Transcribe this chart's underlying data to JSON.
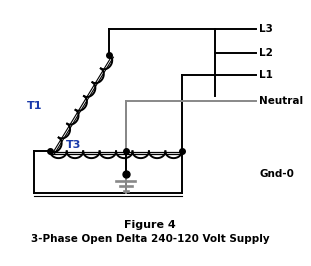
{
  "title_line1": "Figure 4",
  "title_line2": "3-Phase Open Delta 240-120 Volt Supply",
  "label_T1": "T1",
  "label_T3": "T3",
  "label_L3": "L3",
  "label_L2": "L2",
  "label_L1": "L1",
  "label_Neutral": "Neutral",
  "label_Gnd": "Gnd-0",
  "line_color": "#000000",
  "gray_color": "#888888",
  "dot_color": "#000000",
  "label_color_T": "#1a3aaa",
  "bg_color": "#ffffff",
  "figsize": [
    3.11,
    2.66
  ],
  "dpi": 100
}
